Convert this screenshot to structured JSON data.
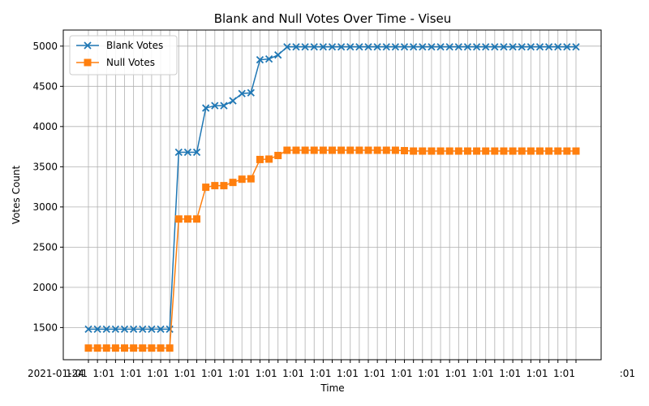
{
  "chart_data": {
    "type": "line",
    "title": "Blank and Null Votes Over Time - Viseu",
    "xlabel": "Time",
    "ylabel": "Votes Count",
    "x_tick_label_pattern": "2021-01-24 ... :01",
    "x_count": 55,
    "y_ticks": [
      1500,
      2000,
      2500,
      3000,
      3500,
      4000,
      4500,
      5000
    ],
    "ylim": [
      1100,
      5200
    ],
    "grid": true,
    "legend_position": "upper-left",
    "series": [
      {
        "name": "Blank Votes",
        "color": "#1f77b4",
        "marker": "x",
        "values": [
          1480,
          1480,
          1480,
          1480,
          1480,
          1480,
          1480,
          1480,
          1480,
          1480,
          3680,
          3680,
          3680,
          4230,
          4260,
          4260,
          4320,
          4410,
          4420,
          4830,
          4840,
          4890,
          4990,
          4990,
          4990,
          4990,
          4990,
          4990,
          4990,
          4990,
          4990,
          4990,
          4990,
          4990,
          4990,
          4990,
          4990,
          4990,
          4990,
          4990,
          4990,
          4990,
          4990,
          4990,
          4990,
          4990,
          4990,
          4990,
          4990,
          4990,
          4990,
          4990,
          4990,
          4990,
          4990
        ]
      },
      {
        "name": "Null Votes",
        "color": "#ff7f0e",
        "marker": "s",
        "values": [
          1245,
          1245,
          1245,
          1245,
          1245,
          1245,
          1245,
          1245,
          1245,
          1245,
          2850,
          2850,
          2850,
          3245,
          3265,
          3265,
          3305,
          3345,
          3350,
          3590,
          3595,
          3640,
          3705,
          3705,
          3705,
          3705,
          3705,
          3705,
          3705,
          3705,
          3705,
          3705,
          3705,
          3705,
          3705,
          3700,
          3695,
          3695,
          3695,
          3695,
          3695,
          3695,
          3695,
          3695,
          3695,
          3695,
          3695,
          3695,
          3695,
          3695,
          3695,
          3695,
          3695,
          3695,
          3695
        ]
      }
    ]
  }
}
